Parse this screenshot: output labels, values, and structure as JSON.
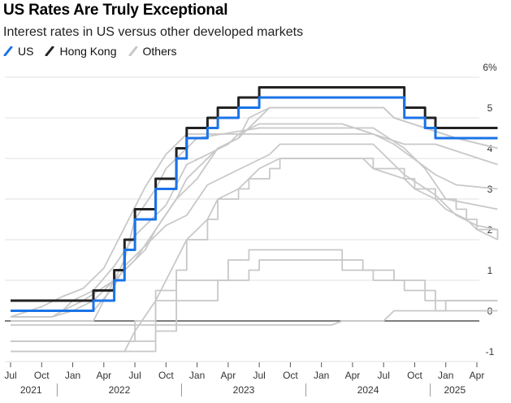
{
  "title": "US Rates Are Truly Exceptional",
  "subtitle": "Interest rates in US versus other developed markets",
  "legend": [
    {
      "label": "US",
      "color": "#1a73e8"
    },
    {
      "label": "Hong Kong",
      "color": "#222222"
    },
    {
      "label": "Others",
      "color": "#c8c8c8"
    }
  ],
  "chart_data": {
    "type": "line",
    "title": "US Rates Are Truly Exceptional",
    "subtitle": "Interest rates in US versus other developed markets",
    "xlim": [
      "2021-07",
      "2025-06"
    ],
    "ylim": [
      -1,
      6
    ],
    "y_ticks": [
      -1,
      0,
      1,
      2,
      3,
      4,
      5
    ],
    "y_top_label": "6%",
    "x_month_ticks": [
      "Jul",
      "Oct",
      "Jan",
      "Apr",
      "Jul",
      "Oct",
      "Jan",
      "Apr",
      "Jul",
      "Oct",
      "Jan",
      "Apr",
      "Jul",
      "Oct",
      "Jan",
      "Apr"
    ],
    "x_year_labels": [
      "2021",
      "2022",
      "2023",
      "2024",
      "2025"
    ],
    "grid": true,
    "legend_position": "top-left",
    "series": [
      {
        "name": "US",
        "color": "#1a73e8",
        "points": [
          [
            "2021-07",
            0.25
          ],
          [
            "2022-03",
            0.25
          ],
          [
            "2022-03",
            0.5
          ],
          [
            "2022-05",
            0.5
          ],
          [
            "2022-05",
            1.0
          ],
          [
            "2022-06",
            1.0
          ],
          [
            "2022-06",
            1.75
          ],
          [
            "2022-07",
            1.75
          ],
          [
            "2022-07",
            2.5
          ],
          [
            "2022-09",
            2.5
          ],
          [
            "2022-09",
            3.25
          ],
          [
            "2022-11",
            3.25
          ],
          [
            "2022-11",
            4.0
          ],
          [
            "2022-12",
            4.0
          ],
          [
            "2022-12",
            4.5
          ],
          [
            "2023-02",
            4.5
          ],
          [
            "2023-02",
            4.75
          ],
          [
            "2023-03",
            4.75
          ],
          [
            "2023-03",
            5.0
          ],
          [
            "2023-05",
            5.0
          ],
          [
            "2023-05",
            5.25
          ],
          [
            "2023-07",
            5.25
          ],
          [
            "2023-07",
            5.5
          ],
          [
            "2024-09",
            5.5
          ],
          [
            "2024-09",
            5.0
          ],
          [
            "2024-11",
            5.0
          ],
          [
            "2024-11",
            4.75
          ],
          [
            "2024-12",
            4.75
          ],
          [
            "2024-12",
            4.5
          ],
          [
            "2025-06",
            4.5
          ]
        ]
      },
      {
        "name": "Hong Kong",
        "color": "#222222",
        "points": [
          [
            "2021-07",
            0.5
          ],
          [
            "2022-03",
            0.5
          ],
          [
            "2022-03",
            0.75
          ],
          [
            "2022-05",
            0.75
          ],
          [
            "2022-05",
            1.25
          ],
          [
            "2022-06",
            1.25
          ],
          [
            "2022-06",
            2.0
          ],
          [
            "2022-07",
            2.0
          ],
          [
            "2022-07",
            2.75
          ],
          [
            "2022-09",
            2.75
          ],
          [
            "2022-09",
            3.5
          ],
          [
            "2022-11",
            3.5
          ],
          [
            "2022-11",
            4.25
          ],
          [
            "2022-12",
            4.25
          ],
          [
            "2022-12",
            4.75
          ],
          [
            "2023-02",
            4.75
          ],
          [
            "2023-02",
            5.0
          ],
          [
            "2023-03",
            5.0
          ],
          [
            "2023-03",
            5.25
          ],
          [
            "2023-05",
            5.25
          ],
          [
            "2023-05",
            5.5
          ],
          [
            "2023-07",
            5.5
          ],
          [
            "2023-07",
            5.75
          ],
          [
            "2024-09",
            5.75
          ],
          [
            "2024-09",
            5.25
          ],
          [
            "2024-11",
            5.25
          ],
          [
            "2024-11",
            5.0
          ],
          [
            "2024-12",
            5.0
          ],
          [
            "2024-12",
            4.75
          ],
          [
            "2025-06",
            4.75
          ]
        ]
      },
      {
        "color": "#c8c8c8",
        "points": [
          [
            "2021-07",
            0.1
          ],
          [
            "2021-11",
            0.1
          ],
          [
            "2022-01",
            0.25
          ],
          [
            "2022-03",
            0.5
          ],
          [
            "2022-05",
            1.0
          ],
          [
            "2022-07",
            1.5
          ],
          [
            "2022-09",
            2.25
          ],
          [
            "2022-11",
            3.0
          ],
          [
            "2023-01",
            3.5
          ],
          [
            "2023-03",
            4.25
          ],
          [
            "2023-05",
            4.5
          ],
          [
            "2023-08",
            5.25
          ],
          [
            "2024-07",
            5.25
          ],
          [
            "2024-08",
            5.0
          ],
          [
            "2024-11",
            4.75
          ],
          [
            "2025-02",
            4.5
          ],
          [
            "2025-06",
            4.25
          ]
        ]
      },
      {
        "color": "#c8c8c8",
        "points": [
          [
            "2021-07",
            0.25
          ],
          [
            "2021-12",
            0.25
          ],
          [
            "2022-01",
            0.5
          ],
          [
            "2022-03",
            0.75
          ],
          [
            "2022-05",
            1.35
          ],
          [
            "2022-07",
            2.1
          ],
          [
            "2022-10",
            2.85
          ],
          [
            "2022-12",
            3.85
          ],
          [
            "2023-02",
            4.1
          ],
          [
            "2023-04",
            4.35
          ],
          [
            "2023-05",
            4.6
          ],
          [
            "2023-07",
            4.85
          ],
          [
            "2024-03",
            4.85
          ],
          [
            "2024-06",
            4.6
          ],
          [
            "2024-08",
            4.35
          ],
          [
            "2024-12",
            3.6
          ],
          [
            "2025-02",
            3.35
          ],
          [
            "2025-06",
            3.25
          ]
        ]
      },
      {
        "color": "#c8c8c8",
        "points": [
          [
            "2021-07",
            0.1
          ],
          [
            "2021-10",
            0.35
          ],
          [
            "2021-12",
            0.6
          ],
          [
            "2022-02",
            0.8
          ],
          [
            "2022-04",
            1.3
          ],
          [
            "2022-06",
            2.3
          ],
          [
            "2022-08",
            3.3
          ],
          [
            "2022-10",
            4.1
          ],
          [
            "2022-12",
            4.6
          ],
          [
            "2023-03",
            4.6
          ],
          [
            "2023-06",
            4.6
          ],
          [
            "2024-06",
            4.6
          ],
          [
            "2024-09",
            4.35
          ],
          [
            "2024-12",
            4.35
          ],
          [
            "2025-03",
            4.1
          ],
          [
            "2025-06",
            3.85
          ]
        ]
      },
      {
        "color": "#c8c8c8",
        "points": [
          [
            "2021-07",
            0.0
          ],
          [
            "2022-03",
            0.0
          ],
          [
            "2022-04",
            0.5
          ],
          [
            "2022-06",
            1.5
          ],
          [
            "2022-07",
            2.5
          ],
          [
            "2022-09",
            3.25
          ],
          [
            "2022-10",
            3.75
          ],
          [
            "2023-01",
            4.5
          ],
          [
            "2023-07",
            4.75
          ],
          [
            "2024-06",
            4.75
          ],
          [
            "2024-09",
            4.25
          ],
          [
            "2024-11",
            3.75
          ],
          [
            "2025-01",
            3.0
          ],
          [
            "2025-06",
            2.75
          ]
        ]
      },
      {
        "color": "#c8c8c8",
        "points": [
          [
            "2021-07",
            0.25
          ],
          [
            "2022-03",
            0.25
          ],
          [
            "2022-05",
            0.85
          ],
          [
            "2022-06",
            1.35
          ],
          [
            "2022-08",
            1.85
          ],
          [
            "2022-10",
            2.35
          ],
          [
            "2022-12",
            2.6
          ],
          [
            "2023-02",
            3.35
          ],
          [
            "2023-04",
            3.6
          ],
          [
            "2023-06",
            3.85
          ],
          [
            "2023-08",
            4.1
          ],
          [
            "2023-09",
            4.35
          ],
          [
            "2024-06",
            4.35
          ],
          [
            "2024-07",
            4.1
          ],
          [
            "2024-09",
            3.6
          ],
          [
            "2024-12",
            3.1
          ],
          [
            "2025-02",
            2.6
          ],
          [
            "2025-04",
            2.35
          ],
          [
            "2025-06",
            2.25
          ]
        ]
      },
      {
        "color": "#c8c8c8",
        "points": [
          [
            "2021-07",
            0.1
          ],
          [
            "2021-11",
            0.1
          ],
          [
            "2021-12",
            0.25
          ],
          [
            "2022-02",
            0.5
          ],
          [
            "2022-05",
            1.0
          ],
          [
            "2022-06",
            1.25
          ],
          [
            "2022-08",
            1.75
          ],
          [
            "2022-09",
            2.25
          ],
          [
            "2022-11",
            3.0
          ],
          [
            "2022-12",
            3.5
          ],
          [
            "2023-02",
            4.0
          ],
          [
            "2023-03",
            4.25
          ],
          [
            "2023-05",
            4.5
          ],
          [
            "2023-06",
            5.0
          ],
          [
            "2023-08",
            5.25
          ],
          [
            "2024-07",
            5.25
          ],
          [
            "2024-08",
            5.0
          ],
          [
            "2024-11",
            4.75
          ],
          [
            "2025-02",
            4.5
          ],
          [
            "2025-06",
            4.25
          ]
        ]
      },
      {
        "color": "#c8c8c8",
        "points": [
          [
            "2021-07",
            -0.75
          ],
          [
            "2022-06",
            -0.75
          ],
          [
            "2022-07",
            -0.25
          ],
          [
            "2022-09",
            0.5
          ],
          [
            "2022-11",
            1.5
          ],
          [
            "2022-12",
            2.0
          ],
          [
            "2023-02",
            2.5
          ],
          [
            "2023-03",
            3.0
          ],
          [
            "2023-05",
            3.25
          ],
          [
            "2023-06",
            3.5
          ],
          [
            "2023-07",
            3.75
          ],
          [
            "2023-09",
            4.0
          ],
          [
            "2024-05",
            4.0
          ],
          [
            "2024-06",
            3.75
          ],
          [
            "2024-09",
            3.5
          ],
          [
            "2024-10",
            3.25
          ],
          [
            "2024-12",
            3.0
          ],
          [
            "2025-01",
            2.75
          ],
          [
            "2025-03",
            2.5
          ],
          [
            "2025-04",
            2.25
          ],
          [
            "2025-06",
            2.0
          ]
        ]
      },
      {
        "color": "#c8c8c8",
        "points": [
          [
            "2021-07",
            -0.5
          ],
          [
            "2022-07",
            -0.5
          ],
          [
            "2022-07",
            0.0
          ],
          [
            "2022-09",
            0.0
          ],
          [
            "2022-09",
            0.75
          ],
          [
            "2022-11",
            0.75
          ],
          [
            "2022-11",
            1.25
          ],
          [
            "2022-12",
            1.25
          ],
          [
            "2022-12",
            2.0
          ],
          [
            "2023-02",
            2.0
          ],
          [
            "2023-02",
            2.5
          ],
          [
            "2023-03",
            2.5
          ],
          [
            "2023-03",
            3.0
          ],
          [
            "2023-05",
            3.0
          ],
          [
            "2023-05",
            3.25
          ],
          [
            "2023-06",
            3.25
          ],
          [
            "2023-06",
            3.5
          ],
          [
            "2023-08",
            3.5
          ],
          [
            "2023-08",
            3.75
          ],
          [
            "2023-09",
            3.75
          ],
          [
            "2023-09",
            4.0
          ],
          [
            "2024-06",
            4.0
          ],
          [
            "2024-06",
            3.75
          ],
          [
            "2024-09",
            3.75
          ],
          [
            "2024-09",
            3.5
          ],
          [
            "2024-10",
            3.5
          ],
          [
            "2024-10",
            3.25
          ],
          [
            "2024-12",
            3.25
          ],
          [
            "2024-12",
            3.0
          ],
          [
            "2025-02",
            3.0
          ],
          [
            "2025-02",
            2.75
          ],
          [
            "2025-03",
            2.75
          ],
          [
            "2025-03",
            2.5
          ],
          [
            "2025-04",
            2.5
          ],
          [
            "2025-04",
            2.25
          ],
          [
            "2025-06",
            2.25
          ],
          [
            "2025-06",
            2.0
          ]
        ]
      },
      {
        "color": "#c8c8c8",
        "points": [
          [
            "2021-07",
            -0.5
          ],
          [
            "2022-09",
            -0.5
          ],
          [
            "2022-09",
            0.5
          ],
          [
            "2022-11",
            0.5
          ],
          [
            "2022-11",
            1.0
          ],
          [
            "2023-04",
            1.0
          ],
          [
            "2023-04",
            1.5
          ],
          [
            "2023-06",
            1.5
          ],
          [
            "2023-06",
            1.75
          ],
          [
            "2024-03",
            1.75
          ],
          [
            "2024-03",
            1.5
          ],
          [
            "2024-05",
            1.5
          ],
          [
            "2024-05",
            1.25
          ],
          [
            "2024-08",
            1.25
          ],
          [
            "2024-08",
            1.0
          ],
          [
            "2024-11",
            1.0
          ],
          [
            "2024-11",
            0.5
          ],
          [
            "2025-06",
            0.5
          ]
        ]
      },
      {
        "color": "#c8c8c8",
        "points": [
          [
            "2021-07",
            -0.75
          ],
          [
            "2022-09",
            -0.75
          ],
          [
            "2022-09",
            -0.25
          ],
          [
            "2022-11",
            -0.25
          ],
          [
            "2022-11",
            0.5
          ],
          [
            "2023-03",
            0.5
          ],
          [
            "2023-03",
            1.0
          ],
          [
            "2023-06",
            1.0
          ],
          [
            "2023-06",
            1.25
          ],
          [
            "2023-07",
            1.25
          ],
          [
            "2023-07",
            1.5
          ],
          [
            "2024-03",
            1.5
          ],
          [
            "2024-03",
            1.25
          ],
          [
            "2024-06",
            1.25
          ],
          [
            "2024-06",
            1.0
          ],
          [
            "2024-09",
            1.0
          ],
          [
            "2024-09",
            0.75
          ],
          [
            "2024-12",
            0.75
          ],
          [
            "2024-12",
            0.25
          ],
          [
            "2025-06",
            0.25
          ]
        ]
      },
      {
        "color": "#c8c8c8",
        "points": [
          [
            "2021-07",
            -0.1
          ],
          [
            "2024-02",
            -0.1
          ],
          [
            "2024-03",
            0.0
          ],
          [
            "2024-07",
            0.0
          ],
          [
            "2024-08",
            0.25
          ],
          [
            "2025-01",
            0.25
          ],
          [
            "2025-01",
            0.5
          ],
          [
            "2025-06",
            0.5
          ]
        ]
      }
    ]
  }
}
